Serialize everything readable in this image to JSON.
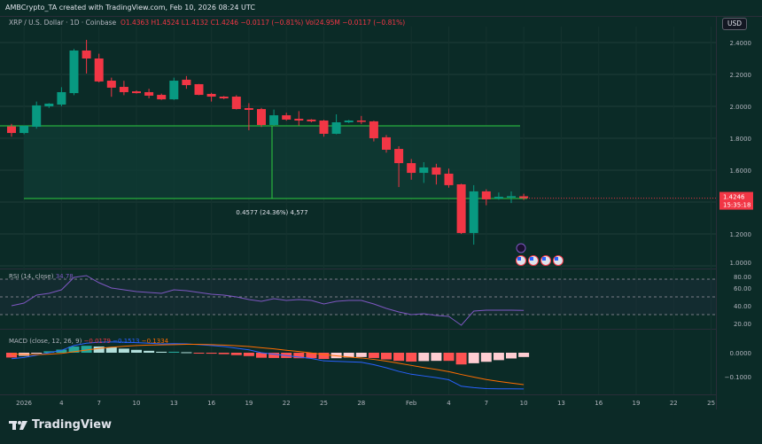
{
  "header": {
    "created_line": "AMBCrypto_TA created with TradingView.com, Feb 10, 2026 08:24 UTC",
    "symbol": "XRP / U.S. Dollar · 1D · Coinbase",
    "open": "O1.4363",
    "high": "H1.4524",
    "low": "L1.4132",
    "close": "C1.4246",
    "change": "−0.0117 (−0.81%)",
    "volume": "Vol24.95M",
    "vol_change": "−0.0117 (−0.81%)"
  },
  "currency": "USD",
  "price_tag": {
    "price": "1.4246",
    "countdown": "15:35:18"
  },
  "measure_label": "0.4577 (24.36%)  4,577",
  "rsi_legend": {
    "name": "RSI (14, close)",
    "value": "34.78"
  },
  "macd_legend": {
    "name": "MACD (close, 12, 26, 9)",
    "hist": "−0.0179",
    "macd": "−0.1513",
    "signal": "−0.1334"
  },
  "brand": "TradingView",
  "colors": {
    "up": "#089981",
    "down": "#f23645",
    "level": "#2ecc40",
    "rsi": "#7e57c2",
    "macd": "#2962ff",
    "signal": "#ff6d00",
    "background": "#0b2b27"
  },
  "chart_data": {
    "type": "candlestick",
    "price_axis": {
      "ylim": [
        1.0,
        2.45
      ],
      "ticks": [
        "2.4000",
        "2.2000",
        "2.0000",
        "1.8000",
        "1.6000",
        "1.2000",
        "1.0000"
      ]
    },
    "time_axis_ticks": [
      "2026",
      "4",
      "7",
      "10",
      "13",
      "16",
      "19",
      "22",
      "25",
      "28",
      "Feb",
      "4",
      "7",
      "10",
      "13",
      "16",
      "19",
      "22",
      "25"
    ],
    "levels": [
      1.878,
      1.422
    ],
    "candles": [
      {
        "date": "2025-12-31",
        "o": 1.874,
        "h": 1.89,
        "l": 1.81,
        "c": 1.833
      },
      {
        "date": "2026-01-01",
        "o": 1.833,
        "h": 1.88,
        "l": 1.825,
        "c": 1.878
      },
      {
        "date": "2026-01-02",
        "o": 1.872,
        "h": 2.03,
        "l": 1.86,
        "c": 2.006
      },
      {
        "date": "2026-01-03",
        "o": 2.0,
        "h": 2.02,
        "l": 1.99,
        "c": 2.017
      },
      {
        "date": "2026-01-04",
        "o": 2.011,
        "h": 2.12,
        "l": 2.0,
        "c": 2.089
      },
      {
        "date": "2026-01-05",
        "o": 2.083,
        "h": 2.36,
        "l": 2.07,
        "c": 2.35
      },
      {
        "date": "2026-01-06",
        "o": 2.35,
        "h": 2.417,
        "l": 2.206,
        "c": 2.3
      },
      {
        "date": "2026-01-07",
        "o": 2.3,
        "h": 2.33,
        "l": 2.15,
        "c": 2.156
      },
      {
        "date": "2026-01-08",
        "o": 2.161,
        "h": 2.18,
        "l": 2.06,
        "c": 2.117
      },
      {
        "date": "2026-01-09",
        "o": 2.122,
        "h": 2.16,
        "l": 2.07,
        "c": 2.089
      },
      {
        "date": "2026-01-10",
        "o": 2.094,
        "h": 2.1,
        "l": 2.08,
        "c": 2.083
      },
      {
        "date": "2026-01-11",
        "o": 2.089,
        "h": 2.11,
        "l": 2.05,
        "c": 2.067
      },
      {
        "date": "2026-01-12",
        "o": 2.072,
        "h": 2.08,
        "l": 2.04,
        "c": 2.044
      },
      {
        "date": "2026-01-13",
        "o": 2.044,
        "h": 2.18,
        "l": 2.04,
        "c": 2.161
      },
      {
        "date": "2026-01-14",
        "o": 2.167,
        "h": 2.19,
        "l": 2.11,
        "c": 2.133
      },
      {
        "date": "2026-01-15",
        "o": 2.139,
        "h": 2.14,
        "l": 2.07,
        "c": 2.072
      },
      {
        "date": "2026-01-16",
        "o": 2.078,
        "h": 2.085,
        "l": 2.03,
        "c": 2.061
      },
      {
        "date": "2026-01-17",
        "o": 2.061,
        "h": 2.065,
        "l": 2.045,
        "c": 2.05
      },
      {
        "date": "2026-01-18",
        "o": 2.061,
        "h": 2.07,
        "l": 1.98,
        "c": 1.983
      },
      {
        "date": "2026-01-19",
        "o": 1.989,
        "h": 2.02,
        "l": 1.85,
        "c": 1.978
      },
      {
        "date": "2026-01-20",
        "o": 1.983,
        "h": 1.99,
        "l": 1.87,
        "c": 1.883
      },
      {
        "date": "2026-01-21",
        "o": 1.883,
        "h": 1.98,
        "l": 1.88,
        "c": 1.944
      },
      {
        "date": "2026-01-22",
        "o": 1.944,
        "h": 1.96,
        "l": 1.91,
        "c": 1.917
      },
      {
        "date": "2026-01-23",
        "o": 1.922,
        "h": 1.97,
        "l": 1.88,
        "c": 1.911
      },
      {
        "date": "2026-01-24",
        "o": 1.917,
        "h": 1.92,
        "l": 1.9,
        "c": 1.906
      },
      {
        "date": "2026-01-25",
        "o": 1.911,
        "h": 1.915,
        "l": 1.81,
        "c": 1.828
      },
      {
        "date": "2026-01-26",
        "o": 1.828,
        "h": 1.95,
        "l": 1.825,
        "c": 1.9
      },
      {
        "date": "2026-01-27",
        "o": 1.9,
        "h": 1.915,
        "l": 1.895,
        "c": 1.911
      },
      {
        "date": "2026-01-28",
        "o": 1.911,
        "h": 1.94,
        "l": 1.89,
        "c": 1.906
      },
      {
        "date": "2026-01-29",
        "o": 1.906,
        "h": 1.91,
        "l": 1.78,
        "c": 1.8
      },
      {
        "date": "2026-01-30",
        "o": 1.806,
        "h": 1.82,
        "l": 1.71,
        "c": 1.728
      },
      {
        "date": "2026-01-31",
        "o": 1.733,
        "h": 1.75,
        "l": 1.494,
        "c": 1.644
      },
      {
        "date": "2026-02-01",
        "o": 1.644,
        "h": 1.67,
        "l": 1.54,
        "c": 1.583
      },
      {
        "date": "2026-02-02",
        "o": 1.583,
        "h": 1.65,
        "l": 1.52,
        "c": 1.617
      },
      {
        "date": "2026-02-03",
        "o": 1.617,
        "h": 1.64,
        "l": 1.51,
        "c": 1.572
      },
      {
        "date": "2026-02-04",
        "o": 1.578,
        "h": 1.61,
        "l": 1.49,
        "c": 1.506
      },
      {
        "date": "2026-02-05",
        "o": 1.511,
        "h": 1.515,
        "l": 1.2,
        "c": 1.206
      },
      {
        "date": "2026-02-06",
        "o": 1.206,
        "h": 1.506,
        "l": 1.133,
        "c": 1.467
      },
      {
        "date": "2026-02-07",
        "o": 1.467,
        "h": 1.48,
        "l": 1.38,
        "c": 1.417
      },
      {
        "date": "2026-02-08",
        "o": 1.422,
        "h": 1.46,
        "l": 1.415,
        "c": 1.433
      },
      {
        "date": "2026-02-09",
        "o": 1.428,
        "h": 1.467,
        "l": 1.394,
        "c": 1.437
      },
      {
        "date": "2026-02-10",
        "o": 1.4363,
        "h": 1.4524,
        "l": 1.4132,
        "c": 1.4246
      }
    ],
    "rsi": {
      "ticks": [
        "80.00",
        "60.00",
        "40.00",
        "20.00"
      ],
      "bands": [
        70,
        50,
        30
      ],
      "values": [
        40,
        43,
        52,
        54,
        58,
        72,
        74,
        66,
        60,
        58,
        56,
        55,
        54,
        58,
        57,
        55,
        53,
        52,
        50,
        47,
        45,
        48,
        46,
        47,
        46,
        42,
        45,
        46,
        46,
        42,
        37,
        33,
        30,
        31,
        29,
        28,
        18,
        34,
        35,
        35,
        35,
        34.78
      ]
    },
    "macd": {
      "ticks": [
        "0.0000",
        "−0.1000"
      ],
      "macd": [
        -0.025,
        -0.02,
        -0.01,
        0.0,
        0.01,
        0.03,
        0.04,
        0.044,
        0.045,
        0.044,
        0.042,
        0.04,
        0.037,
        0.038,
        0.037,
        0.034,
        0.03,
        0.026,
        0.019,
        0.012,
        0.0,
        -0.006,
        -0.012,
        -0.018,
        -0.024,
        -0.034,
        -0.036,
        -0.038,
        -0.04,
        -0.05,
        -0.063,
        -0.078,
        -0.09,
        -0.097,
        -0.104,
        -0.113,
        -0.14,
        -0.146,
        -0.15,
        -0.151,
        -0.151,
        -0.1513
      ],
      "signal": [
        -0.005,
        -0.007,
        -0.008,
        -0.006,
        -0.003,
        0.004,
        0.011,
        0.018,
        0.023,
        0.027,
        0.03,
        0.032,
        0.033,
        0.034,
        0.035,
        0.035,
        0.034,
        0.032,
        0.029,
        0.026,
        0.021,
        0.016,
        0.01,
        0.005,
        -0.001,
        -0.008,
        -0.013,
        -0.018,
        -0.022,
        -0.028,
        -0.035,
        -0.044,
        -0.053,
        -0.062,
        -0.07,
        -0.079,
        -0.091,
        -0.102,
        -0.112,
        -0.12,
        -0.127,
        -0.1334
      ]
    }
  }
}
